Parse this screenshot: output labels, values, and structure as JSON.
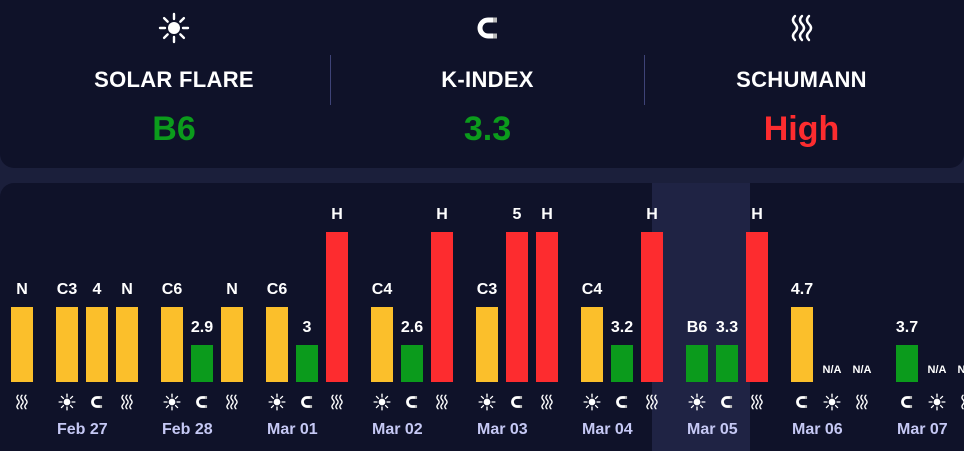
{
  "stats": [
    {
      "icon": "sun-icon",
      "label": "SOLAR FLARE",
      "value": "B6",
      "color": "#0b9b1c"
    },
    {
      "icon": "magnet-icon",
      "label": "K-INDEX",
      "value": "3.3",
      "color": "#0b9b1c"
    },
    {
      "icon": "waves-icon",
      "label": "SCHUMANN",
      "value": "High",
      "color": "#fd2c2f"
    }
  ],
  "days": [
    {
      "date": "",
      "partial": true,
      "bars": [
        {
          "kind": "schumann",
          "level": 1.0,
          "color": "yellow",
          "label": "N"
        }
      ]
    },
    {
      "date": "Feb 27",
      "bars": [
        {
          "kind": "flare",
          "level": 1.0,
          "color": "yellow",
          "label": "C3"
        },
        {
          "kind": "kindex",
          "level": 1.0,
          "color": "yellow",
          "label": "4"
        },
        {
          "kind": "schumann",
          "level": 1.0,
          "color": "yellow",
          "label": "N"
        }
      ]
    },
    {
      "date": "Feb 28",
      "bars": [
        {
          "kind": "flare",
          "level": 1.0,
          "color": "yellow",
          "label": "C6"
        },
        {
          "kind": "kindex",
          "level": 0.5,
          "color": "green",
          "label": "2.9"
        },
        {
          "kind": "schumann",
          "level": 1.0,
          "color": "yellow",
          "label": "N"
        }
      ]
    },
    {
      "date": "Mar 01",
      "bars": [
        {
          "kind": "flare",
          "level": 1.0,
          "color": "yellow",
          "label": "C6"
        },
        {
          "kind": "kindex",
          "level": 0.5,
          "color": "green",
          "label": "3"
        },
        {
          "kind": "schumann",
          "level": 2.0,
          "color": "red",
          "label": "H"
        }
      ]
    },
    {
      "date": "Mar 02",
      "bars": [
        {
          "kind": "flare",
          "level": 1.0,
          "color": "yellow",
          "label": "C4"
        },
        {
          "kind": "kindex",
          "level": 0.5,
          "color": "green",
          "label": "2.6"
        },
        {
          "kind": "schumann",
          "level": 2.0,
          "color": "red",
          "label": "H"
        }
      ]
    },
    {
      "date": "Mar 03",
      "bars": [
        {
          "kind": "flare",
          "level": 1.0,
          "color": "yellow",
          "label": "C3"
        },
        {
          "kind": "kindex",
          "level": 2.0,
          "color": "red",
          "label": "5"
        },
        {
          "kind": "schumann",
          "level": 2.0,
          "color": "red",
          "label": "H"
        }
      ]
    },
    {
      "date": "Mar 04",
      "bars": [
        {
          "kind": "flare",
          "level": 1.0,
          "color": "yellow",
          "label": "C4"
        },
        {
          "kind": "kindex",
          "level": 0.5,
          "color": "green",
          "label": "3.2"
        },
        {
          "kind": "schumann",
          "level": 2.0,
          "color": "red",
          "label": "H"
        }
      ]
    },
    {
      "date": "Mar 05",
      "highlight": true,
      "bars": [
        {
          "kind": "flare",
          "level": 0.5,
          "color": "green",
          "label": "B6"
        },
        {
          "kind": "kindex",
          "level": 0.5,
          "color": "green",
          "label": "3.3"
        },
        {
          "kind": "schumann",
          "level": 2.0,
          "color": "red",
          "label": "H"
        }
      ]
    },
    {
      "date": "Mar 06",
      "bars": [
        {
          "kind": "kindex",
          "level": 1.0,
          "color": "yellow",
          "label": "4.7"
        },
        {
          "kind": "flare",
          "level": 0,
          "color": "",
          "label": "N/A"
        },
        {
          "kind": "schumann",
          "level": 0,
          "color": "",
          "label": "N/A"
        }
      ]
    },
    {
      "date": "Mar 07",
      "bars": [
        {
          "kind": "kindex",
          "level": 0.5,
          "color": "green",
          "label": "3.7"
        },
        {
          "kind": "flare",
          "level": 0,
          "color": "",
          "label": "N/A"
        },
        {
          "kind": "schumann",
          "level": 0,
          "color": "",
          "label": "N/A"
        }
      ]
    }
  ]
}
